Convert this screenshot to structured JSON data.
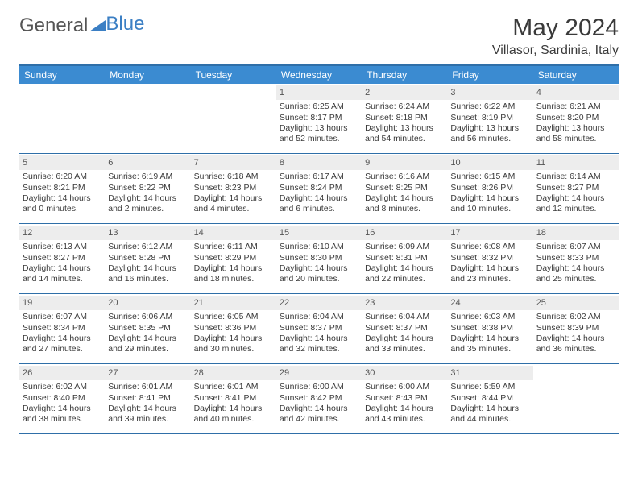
{
  "logo": {
    "text1": "General",
    "text2": "Blue"
  },
  "header": {
    "title": "May 2024",
    "subtitle": "Villasor, Sardinia, Italy"
  },
  "colors": {
    "header_bar": "#3b8bd1",
    "header_border": "#2f6fa8",
    "daynum_bg": "#ededed",
    "text": "#3a3a3a",
    "logo_gray": "#555555",
    "logo_blue": "#3b7fc4"
  },
  "dayNames": [
    "Sunday",
    "Monday",
    "Tuesday",
    "Wednesday",
    "Thursday",
    "Friday",
    "Saturday"
  ],
  "firstDayIndex": 3,
  "daysInMonth": 31,
  "days": {
    "1": {
      "sunrise": "6:25 AM",
      "sunset": "8:17 PM",
      "daylight": "13 hours and 52 minutes."
    },
    "2": {
      "sunrise": "6:24 AM",
      "sunset": "8:18 PM",
      "daylight": "13 hours and 54 minutes."
    },
    "3": {
      "sunrise": "6:22 AM",
      "sunset": "8:19 PM",
      "daylight": "13 hours and 56 minutes."
    },
    "4": {
      "sunrise": "6:21 AM",
      "sunset": "8:20 PM",
      "daylight": "13 hours and 58 minutes."
    },
    "5": {
      "sunrise": "6:20 AM",
      "sunset": "8:21 PM",
      "daylight": "14 hours and 0 minutes."
    },
    "6": {
      "sunrise": "6:19 AM",
      "sunset": "8:22 PM",
      "daylight": "14 hours and 2 minutes."
    },
    "7": {
      "sunrise": "6:18 AM",
      "sunset": "8:23 PM",
      "daylight": "14 hours and 4 minutes."
    },
    "8": {
      "sunrise": "6:17 AM",
      "sunset": "8:24 PM",
      "daylight": "14 hours and 6 minutes."
    },
    "9": {
      "sunrise": "6:16 AM",
      "sunset": "8:25 PM",
      "daylight": "14 hours and 8 minutes."
    },
    "10": {
      "sunrise": "6:15 AM",
      "sunset": "8:26 PM",
      "daylight": "14 hours and 10 minutes."
    },
    "11": {
      "sunrise": "6:14 AM",
      "sunset": "8:27 PM",
      "daylight": "14 hours and 12 minutes."
    },
    "12": {
      "sunrise": "6:13 AM",
      "sunset": "8:27 PM",
      "daylight": "14 hours and 14 minutes."
    },
    "13": {
      "sunrise": "6:12 AM",
      "sunset": "8:28 PM",
      "daylight": "14 hours and 16 minutes."
    },
    "14": {
      "sunrise": "6:11 AM",
      "sunset": "8:29 PM",
      "daylight": "14 hours and 18 minutes."
    },
    "15": {
      "sunrise": "6:10 AM",
      "sunset": "8:30 PM",
      "daylight": "14 hours and 20 minutes."
    },
    "16": {
      "sunrise": "6:09 AM",
      "sunset": "8:31 PM",
      "daylight": "14 hours and 22 minutes."
    },
    "17": {
      "sunrise": "6:08 AM",
      "sunset": "8:32 PM",
      "daylight": "14 hours and 23 minutes."
    },
    "18": {
      "sunrise": "6:07 AM",
      "sunset": "8:33 PM",
      "daylight": "14 hours and 25 minutes."
    },
    "19": {
      "sunrise": "6:07 AM",
      "sunset": "8:34 PM",
      "daylight": "14 hours and 27 minutes."
    },
    "20": {
      "sunrise": "6:06 AM",
      "sunset": "8:35 PM",
      "daylight": "14 hours and 29 minutes."
    },
    "21": {
      "sunrise": "6:05 AM",
      "sunset": "8:36 PM",
      "daylight": "14 hours and 30 minutes."
    },
    "22": {
      "sunrise": "6:04 AM",
      "sunset": "8:37 PM",
      "daylight": "14 hours and 32 minutes."
    },
    "23": {
      "sunrise": "6:04 AM",
      "sunset": "8:37 PM",
      "daylight": "14 hours and 33 minutes."
    },
    "24": {
      "sunrise": "6:03 AM",
      "sunset": "8:38 PM",
      "daylight": "14 hours and 35 minutes."
    },
    "25": {
      "sunrise": "6:02 AM",
      "sunset": "8:39 PM",
      "daylight": "14 hours and 36 minutes."
    },
    "26": {
      "sunrise": "6:02 AM",
      "sunset": "8:40 PM",
      "daylight": "14 hours and 38 minutes."
    },
    "27": {
      "sunrise": "6:01 AM",
      "sunset": "8:41 PM",
      "daylight": "14 hours and 39 minutes."
    },
    "28": {
      "sunrise": "6:01 AM",
      "sunset": "8:41 PM",
      "daylight": "14 hours and 40 minutes."
    },
    "29": {
      "sunrise": "6:00 AM",
      "sunset": "8:42 PM",
      "daylight": "14 hours and 42 minutes."
    },
    "30": {
      "sunrise": "6:00 AM",
      "sunset": "8:43 PM",
      "daylight": "14 hours and 43 minutes."
    },
    "31": {
      "sunrise": "5:59 AM",
      "sunset": "8:44 PM",
      "daylight": "14 hours and 44 minutes."
    }
  },
  "labels": {
    "sunrise": "Sunrise: ",
    "sunset": "Sunset: ",
    "daylight": "Daylight: "
  }
}
